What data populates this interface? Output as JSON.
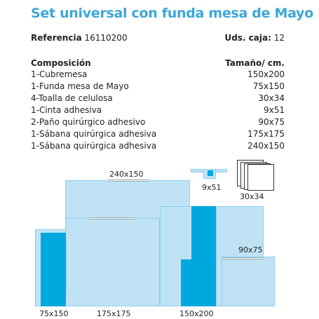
{
  "title": "Set universal con funda mesa de Mayo",
  "reference": {
    "label": "Referencia",
    "value": "16110200"
  },
  "units": {
    "label": "Uds. caja:",
    "value": "12"
  },
  "composition": {
    "header_name": "Composición",
    "header_size": "Tamaño/ cm.",
    "items": [
      {
        "name": "1-Cubremesa",
        "size": "150x200"
      },
      {
        "name": "1-Funda mesa de Mayo",
        "size": "75x150"
      },
      {
        "name": "4-Toalla de celulosa",
        "size": "30x34"
      },
      {
        "name": "1-Cinta adhesiva",
        "size": "9x51"
      },
      {
        "name": "2-Paño quirúrgico adhesivo",
        "size": "90x75"
      },
      {
        "name": "1-Sábana quirúrgica adhesiva",
        "size": "175x175"
      },
      {
        "name": "1-Sábana quirúrgica adhesiva",
        "size": "240x150"
      }
    ]
  },
  "diagram_labels": {
    "sheet_240x150": "240x150",
    "tape": "9x51",
    "towels": "30x34",
    "drape_90x75": "90x75",
    "mayo_cover": "75x150",
    "sheet_175x175": "175x175",
    "table_cover": "150x200"
  },
  "colors": {
    "title": "#3ba7d8",
    "light_blue": "#bfe3f5",
    "dark_blue": "#00a8e0"
  }
}
